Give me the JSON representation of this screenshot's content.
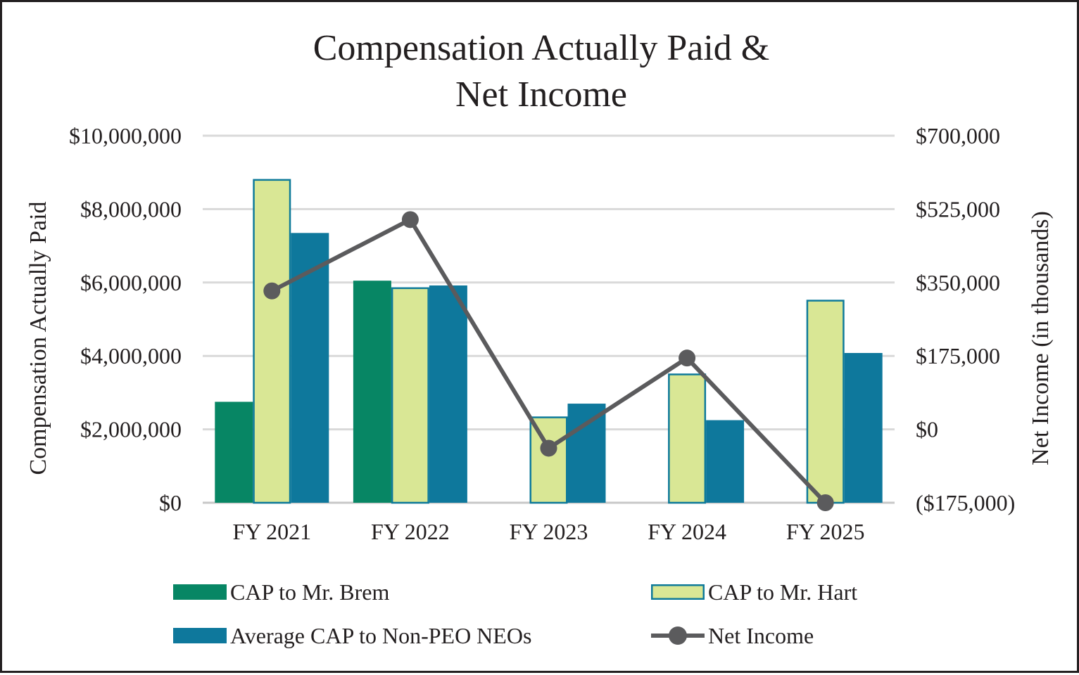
{
  "chart_data": {
    "type": "bar",
    "title_lines": [
      "Compensation Actually Paid &",
      "Net Income"
    ],
    "categories": [
      "FY 2021",
      "FY 2022",
      "FY 2023",
      "FY 2024",
      "FY 2025"
    ],
    "series": [
      {
        "name": "CAP to Mr. Brem",
        "type": "bar",
        "axis": "left",
        "color": "#078664",
        "values": [
          2750000,
          6050000,
          null,
          null,
          null
        ]
      },
      {
        "name": "CAP to Mr. Hart",
        "type": "bar",
        "axis": "left",
        "color": "#d9e795",
        "border": "#0e7a9a",
        "values": [
          8820000,
          5870000,
          2350000,
          3520000,
          5530000
        ]
      },
      {
        "name": "Average CAP to Non-PEO NEOs",
        "type": "bar",
        "axis": "left",
        "color": "#0e789c",
        "values": [
          7350000,
          5920000,
          2700000,
          2250000,
          4080000
        ]
      },
      {
        "name": "Net Income",
        "type": "line",
        "axis": "right",
        "color": "#5b5b5d",
        "values": [
          330000,
          500000,
          -45000,
          170000,
          -175000
        ]
      }
    ],
    "ylabel": "Compensation Actually Paid",
    "y2label": "Net Income (in thousands)",
    "ylim": [
      0,
      10000000
    ],
    "y2lim": [
      -175000,
      700000
    ],
    "yticks": [
      "$0",
      "$2,000,000",
      "$4,000,000",
      "$6,000,000",
      "$8,000,000",
      "$10,000,000"
    ],
    "y2ticks": [
      "($175,000)",
      "$0",
      "$175,000",
      "$350,000",
      "$525,000",
      "$700,000"
    ],
    "grid": true,
    "legend_position": "bottom",
    "legend": [
      {
        "label": "CAP to Mr. Brem",
        "kind": "bar-brem"
      },
      {
        "label": "CAP to Mr. Hart",
        "kind": "bar-hart"
      },
      {
        "label": "Average CAP to Non-PEO NEOs",
        "kind": "bar-neo"
      },
      {
        "label": "Net Income",
        "kind": "line"
      }
    ]
  }
}
